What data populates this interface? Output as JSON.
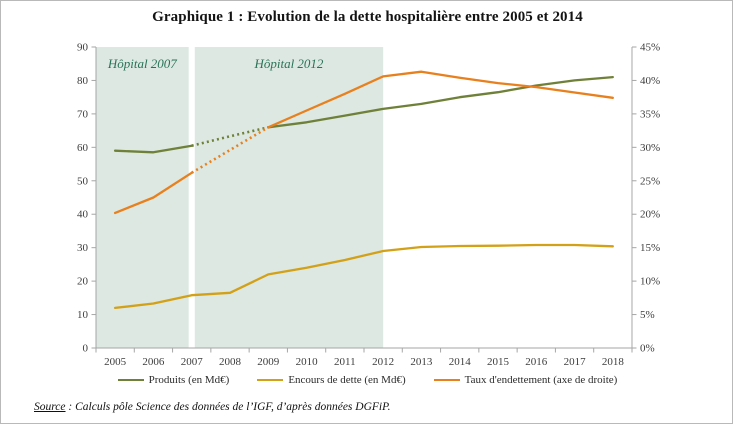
{
  "frame": {
    "title": "Graphique 1 : Evolution de la dette hospitalière entre 2005 et 2014",
    "source_label": "Source",
    "source_rest": " : Calculs pôle Science des données de l’IGF, d’après données DGFiP."
  },
  "chart_data": {
    "type": "line",
    "title": "Graphique 1 : Evolution de la dette hospitalière entre 2005 et 2014",
    "x": [
      2005,
      2006,
      2007,
      2008,
      2009,
      2010,
      2011,
      2012,
      2013,
      2014,
      2015,
      2016,
      2017,
      2018
    ],
    "series": [
      {
        "name": "Produits (en Md€)",
        "axis": "left",
        "color": "#6f8139",
        "dotted_between": [
          2007,
          2009
        ],
        "values": [
          59,
          58.5,
          60.5,
          63.3,
          66,
          67.5,
          69.5,
          71.5,
          73,
          75,
          76.5,
          78.5,
          80,
          81
        ]
      },
      {
        "name": "Encours de dette (en Md€)",
        "axis": "left",
        "color": "#d3a118",
        "values": [
          12,
          13.3,
          15.8,
          16.5,
          22,
          24,
          26.3,
          29,
          30.2,
          30.5,
          30.6,
          30.8,
          30.8,
          30.4
        ]
      },
      {
        "name": "Taux d'endettement (axe de droite)",
        "axis": "right",
        "color": "#e8801e",
        "dotted_between": [
          2007,
          2009
        ],
        "values": [
          20.2,
          22.5,
          26.2,
          29.6,
          33,
          35.5,
          38,
          40.6,
          41.3,
          40.4,
          39.6,
          39,
          38.2,
          37.4
        ]
      }
    ],
    "left_axis": {
      "min": 0,
      "max": 90,
      "step": 10,
      "ticks": [
        0,
        10,
        20,
        30,
        40,
        50,
        60,
        70,
        80,
        90
      ]
    },
    "right_axis": {
      "min": 0,
      "max": 45,
      "step": 5,
      "suffix": "%",
      "ticks": [
        "0%",
        "5%",
        "10%",
        "15%",
        "20%",
        "25%",
        "30%",
        "35%",
        "40%",
        "45%"
      ]
    },
    "regions": [
      {
        "label": "Hôpital 2007",
        "from": 2004.5,
        "to": 2006.92
      },
      {
        "label": "Hôpital 2012",
        "from": 2007.08,
        "to": 2012
      }
    ],
    "styles": {
      "region_fill": "#dce8e1",
      "region_label_color": "#2a7358",
      "axis_color": "#a6a6a6",
      "tick_label_color": "#3d3d3d"
    },
    "legend_position": "bottom",
    "grid": false,
    "xlabel": "",
    "ylabel": ""
  }
}
